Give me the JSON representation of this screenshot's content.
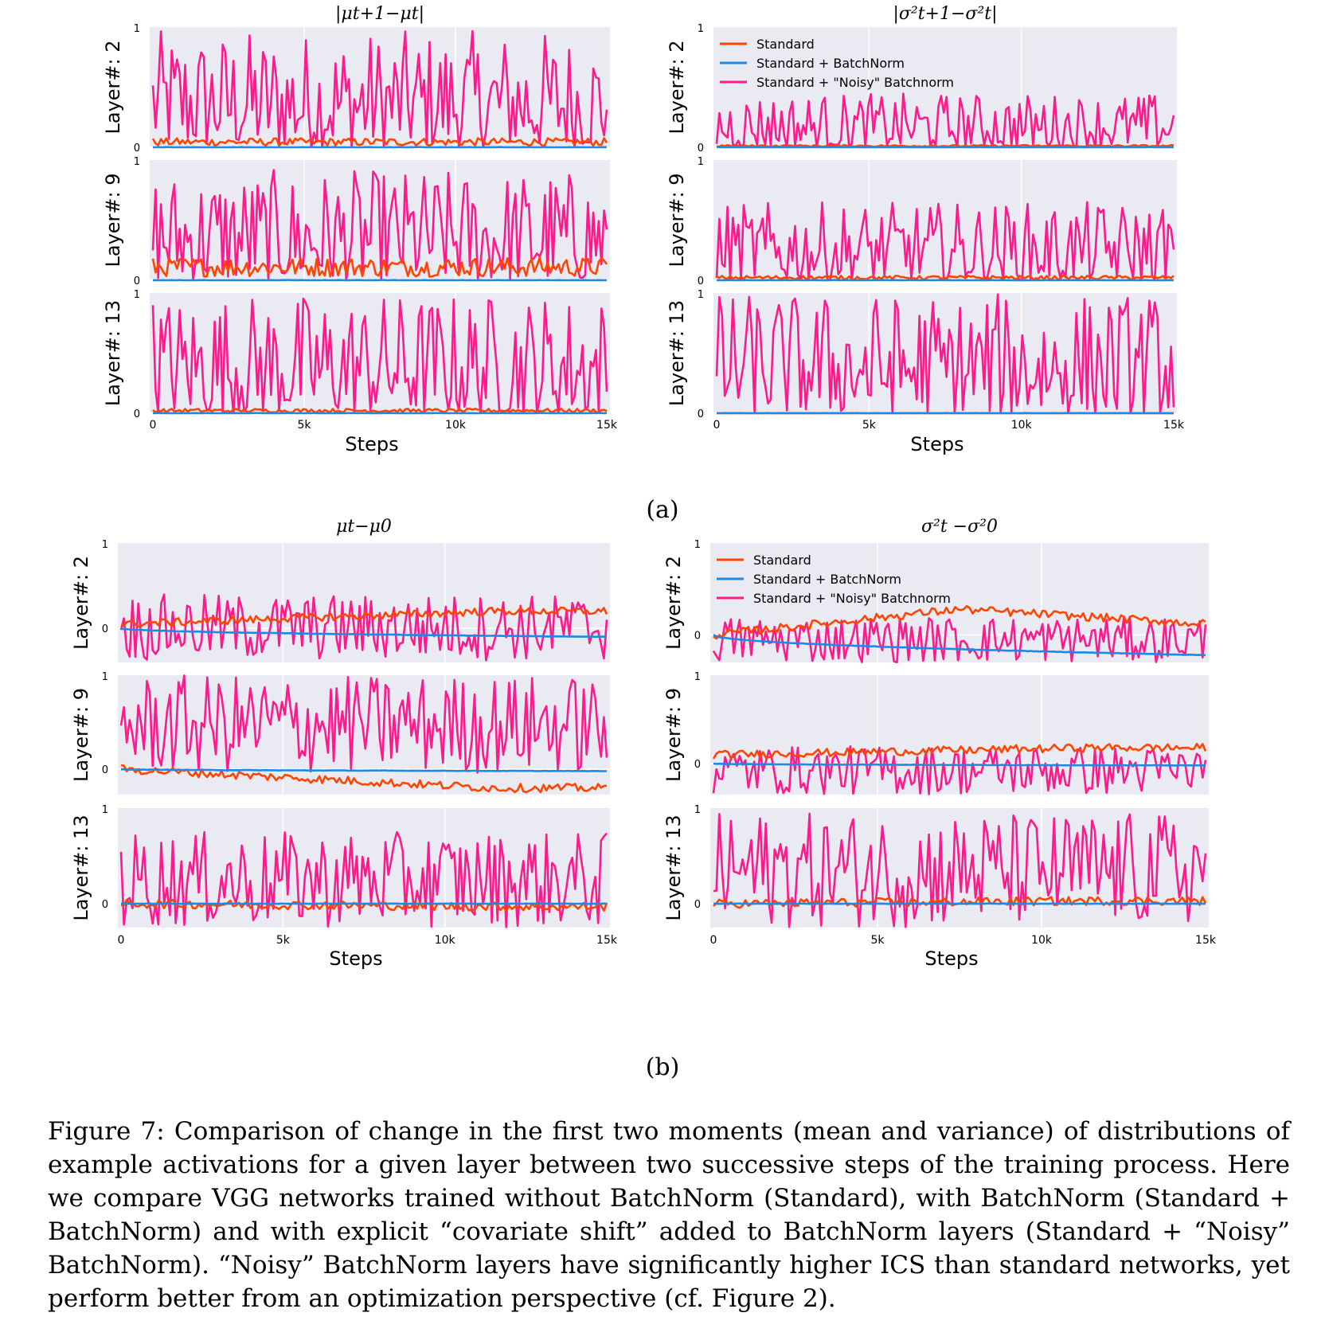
{
  "figure": {
    "panel_a_label": "(a)",
    "panel_b_label": "(b)",
    "caption": "Figure 7: Comparison of change in the first two moments (mean and variance) of distributions of example activations for a given layer between two successive steps of the training process. Here we compare VGG networks trained without BatchNorm (Standard), with BatchNorm (Standard + BatchNorm) and with explicit “covariate shift” added to BatchNorm layers (Standard + “Noisy” BatchNorm). “Noisy” BatchNorm layers have significantly higher ICS than standard networks, yet perform better from an optimization perspective (cf. Figure 2)."
  },
  "chart_data": [
    {
      "type": "line",
      "id": "a-left",
      "title": "|μt+1−μt|",
      "xlabel": "Steps",
      "x_ticks": [
        "0",
        "5k",
        "10k",
        "15k"
      ],
      "xlim": [
        0,
        15000
      ],
      "subplots": [
        {
          "ylabel": "Layer#: 2",
          "y_ticks": [
            "0",
            "1"
          ],
          "ylim": [
            0,
            1
          ]
        },
        {
          "ylabel": "Layer#: 9",
          "y_ticks": [
            "0",
            "1"
          ],
          "ylim": [
            0,
            1
          ]
        },
        {
          "ylabel": "Layer#: 13",
          "y_ticks": [
            "0",
            "1"
          ],
          "ylim": [
            0,
            1
          ]
        }
      ],
      "legend": null,
      "series": [
        {
          "name": "Standard",
          "color": "#ff4500",
          "approx_level_per_layer": [
            0.04,
            0.1,
            0.02
          ]
        },
        {
          "name": "Standard + BatchNorm",
          "color": "#1e88e5",
          "approx_level_per_layer": [
            0.0,
            0.0,
            0.0
          ]
        },
        {
          "name": "Standard + \"Noisy\" Batchnorm",
          "color": "#ff1a8c",
          "approx_range_per_layer": [
            [
              0,
              0.97
            ],
            [
              0,
              0.92
            ],
            [
              0,
              1.0
            ]
          ]
        }
      ]
    },
    {
      "type": "line",
      "id": "a-right",
      "title": "|σ²t+1−σ²t|",
      "xlabel": "Steps",
      "x_ticks": [
        "0",
        "5k",
        "10k",
        "15k"
      ],
      "xlim": [
        0,
        15000
      ],
      "subplots": [
        {
          "ylabel": "Layer#: 2",
          "y_ticks": [
            "0",
            "1"
          ],
          "ylim": [
            0,
            1
          ]
        },
        {
          "ylabel": "Layer#: 9",
          "y_ticks": [
            "0",
            "1"
          ],
          "ylim": [
            0,
            1
          ]
        },
        {
          "ylabel": "Layer#: 13",
          "y_ticks": [
            "0",
            "1"
          ],
          "ylim": [
            0,
            1
          ]
        }
      ],
      "legend": {
        "position": "top-left",
        "entries": [
          "Standard",
          "Standard + BatchNorm",
          "Standard + \"Noisy\" Batchnorm"
        ]
      },
      "series": [
        {
          "name": "Standard",
          "color": "#ff4500",
          "approx_level_per_layer": [
            0.01,
            0.02,
            0.0
          ]
        },
        {
          "name": "Standard + BatchNorm",
          "color": "#1e88e5",
          "approx_level_per_layer": [
            0.0,
            0.0,
            0.0
          ]
        },
        {
          "name": "Standard + \"Noisy\" Batchnorm",
          "color": "#ff1a8c",
          "approx_range_per_layer": [
            [
              0,
              0.45
            ],
            [
              0,
              0.65
            ],
            [
              0,
              1.0
            ]
          ]
        }
      ]
    },
    {
      "type": "line",
      "id": "b-left",
      "title": "μt−μ0",
      "xlabel": "Steps",
      "x_ticks": [
        "0",
        "5k",
        "10k",
        "15k"
      ],
      "xlim": [
        0,
        15000
      ],
      "subplots": [
        {
          "ylabel": "Layer#: 2",
          "y_ticks": [
            "0",
            "1"
          ],
          "ylim": [
            -0.4,
            1
          ]
        },
        {
          "ylabel": "Layer#: 9",
          "y_ticks": [
            "0",
            "1"
          ],
          "ylim": [
            -0.27,
            1
          ]
        },
        {
          "ylabel": "Layer#: 13",
          "y_ticks": [
            "0",
            "1"
          ],
          "ylim": [
            -0.25,
            1
          ]
        }
      ],
      "legend": null,
      "series": [
        {
          "name": "Standard",
          "color": "#ff4500",
          "trend_per_layer": [
            [
              0.05,
              0.2
            ],
            [
              0.0,
              -0.2
            ],
            [
              0.0,
              -0.03
            ]
          ]
        },
        {
          "name": "Standard + BatchNorm",
          "color": "#1e88e5",
          "trend_per_layer": [
            [
              0.0,
              -0.1
            ],
            [
              0.0,
              -0.02
            ],
            [
              0.0,
              0.0
            ]
          ]
        },
        {
          "name": "Standard + \"Noisy\" Batchnorm",
          "color": "#ff1a8c",
          "approx_range_per_layer": [
            [
              -0.38,
              0.4
            ],
            [
              -0.05,
              1.0
            ],
            [
              -0.25,
              0.75
            ]
          ]
        }
      ]
    },
    {
      "type": "line",
      "id": "b-right",
      "title": "σ²t −σ²0",
      "xlabel": "Steps",
      "x_ticks": [
        "0",
        "5k",
        "10k",
        "15k"
      ],
      "xlim": [
        0,
        15000
      ],
      "subplots": [
        {
          "ylabel": "Layer#: 2",
          "y_ticks": [
            "0",
            "1"
          ],
          "ylim": [
            -0.3,
            1
          ]
        },
        {
          "ylabel": "Layer#: 9",
          "y_ticks": [
            "0",
            "1"
          ],
          "ylim": [
            -0.35,
            1
          ]
        },
        {
          "ylabel": "Layer#: 13",
          "y_ticks": [
            "0",
            "1"
          ],
          "ylim": [
            -0.25,
            1
          ]
        }
      ],
      "legend": {
        "position": "top-left",
        "entries": [
          "Standard",
          "Standard + BatchNorm",
          "Standard + \"Noisy\" Batchnorm"
        ]
      },
      "series": [
        {
          "name": "Standard",
          "color": "#ff4500",
          "trend_per_layer": [
            [
              0.0,
              0.28,
              0.12
            ],
            [
              0.1,
              0.18
            ],
            [
              0.0,
              0.03
            ]
          ]
        },
        {
          "name": "Standard + BatchNorm",
          "color": "#1e88e5",
          "trend_per_layer": [
            [
              0.0,
              -0.22
            ],
            [
              0.0,
              -0.02
            ],
            [
              0.0,
              0.0
            ]
          ]
        },
        {
          "name": "Standard + \"Noisy\" Batchnorm",
          "color": "#ff1a8c",
          "approx_range_per_layer": [
            [
              -0.3,
              0.2
            ],
            [
              -0.35,
              0.2
            ],
            [
              -0.25,
              0.95
            ]
          ]
        }
      ]
    }
  ]
}
